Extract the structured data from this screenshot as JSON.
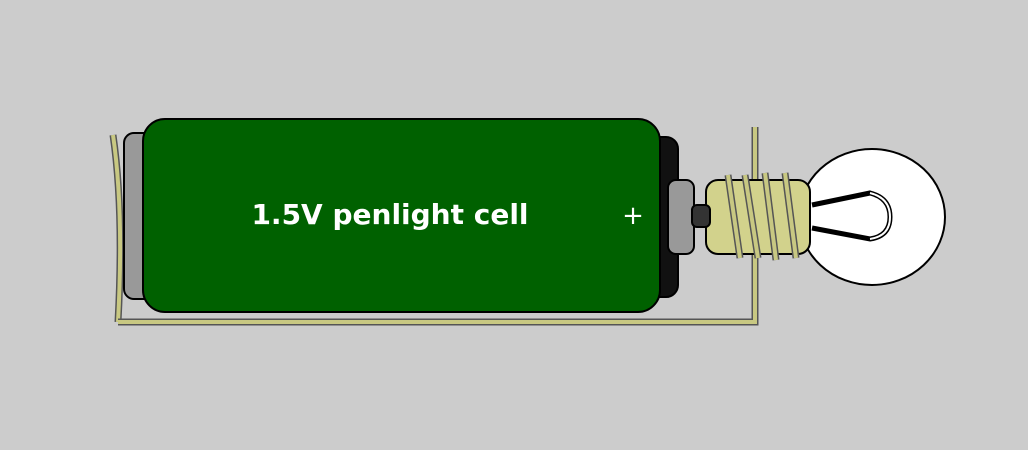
{
  "diagram": {
    "battery_label": "1.5V penlight cell",
    "terminal_sign": "+"
  },
  "colors": {
    "background": "#cccccc",
    "battery_body": "#006100",
    "battery_end": "#999999",
    "outline": "#000000",
    "wire": "#c8c882",
    "wire_outline": "#555555",
    "bulb_glass": "#ffffff",
    "bulb_base": "#d2d28c"
  },
  "components": [
    "battery",
    "wire",
    "bulb"
  ]
}
